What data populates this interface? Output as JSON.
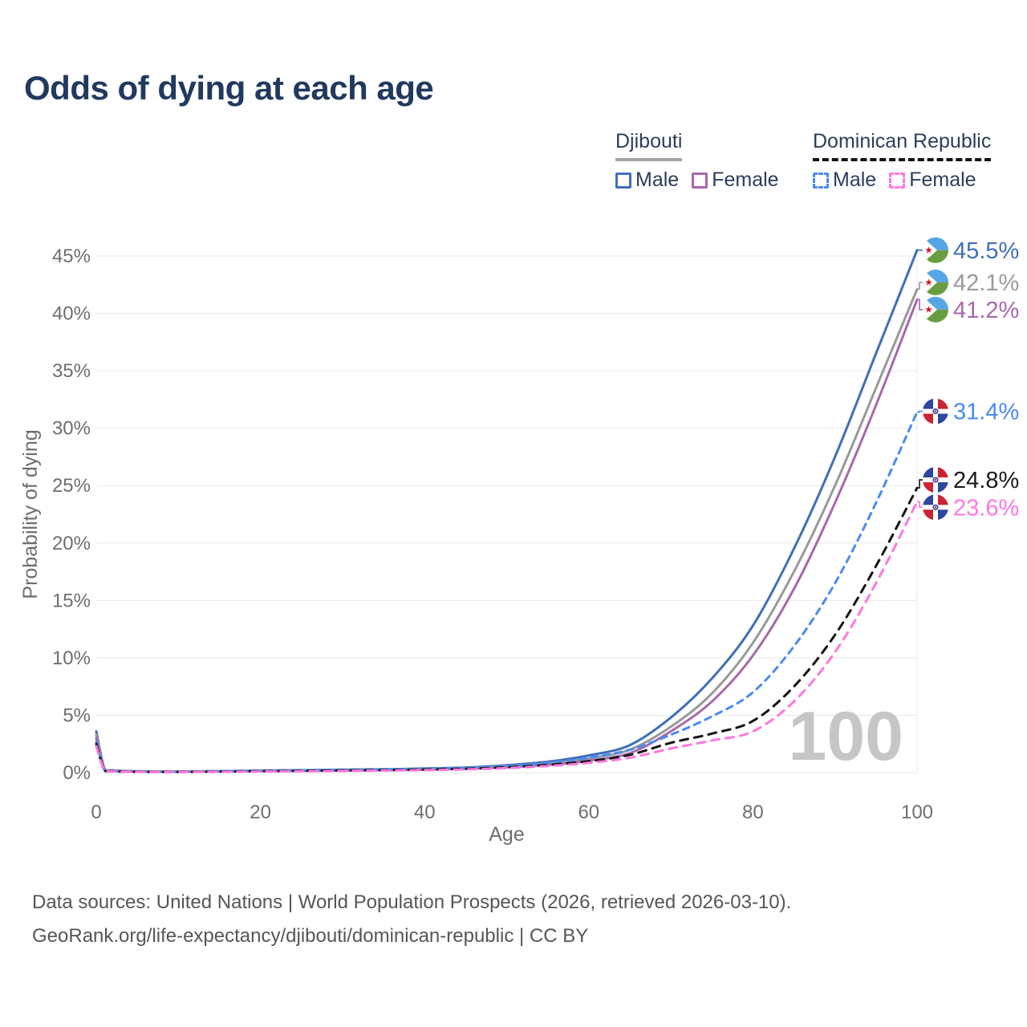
{
  "title": "Odds of dying at each age",
  "legend": {
    "groups": [
      {
        "country": "Djibouti",
        "line_style": "solid",
        "line_color": "#a6a6a6",
        "items": [
          {
            "label": "Male",
            "color": "#3f6fb9",
            "style": "solid"
          },
          {
            "label": "Female",
            "color": "#a868ab",
            "style": "solid"
          }
        ]
      },
      {
        "country": "Dominican Republic",
        "line_style": "dashed",
        "line_color": "#141414",
        "items": [
          {
            "label": "Male",
            "color": "#4b8bf0",
            "style": "dashed"
          },
          {
            "label": "Female",
            "color": "#ff77e0",
            "style": "dashed"
          }
        ]
      }
    ]
  },
  "chart_data": {
    "type": "line",
    "title": "Odds of dying at each age",
    "xlabel": "Age",
    "ylabel": "Probability of dying",
    "xlim": [
      0,
      100
    ],
    "ylim": [
      0,
      45
    ],
    "xticks": [
      0,
      20,
      40,
      60,
      80,
      100
    ],
    "ytick_step": 5,
    "ytick_suffix": "%",
    "grid": "horizontal",
    "watermark": "100",
    "x": [
      0,
      1,
      2,
      5,
      10,
      15,
      20,
      25,
      30,
      35,
      40,
      45,
      50,
      55,
      60,
      65,
      70,
      75,
      80,
      85,
      90,
      95,
      100
    ],
    "series": [
      {
        "name": "Djibouti Male",
        "country": "Djibouti",
        "sex": "Male",
        "flag": "djibouti",
        "color": "#3f6fb9",
        "dash": "",
        "width": 3,
        "end_label": "45.5%",
        "label_color": "#3f6fb9",
        "values": [
          3.6,
          0.35,
          0.2,
          0.12,
          0.1,
          0.13,
          0.18,
          0.22,
          0.26,
          0.3,
          0.36,
          0.45,
          0.65,
          0.95,
          1.5,
          2.4,
          4.8,
          8.2,
          12.8,
          19.5,
          27.5,
          36.5,
          45.5
        ]
      },
      {
        "name": "Djibouti Both sexes",
        "country": "Djibouti",
        "sex": "Both",
        "flag": "djibouti",
        "color": "#999999",
        "dash": "",
        "width": 3,
        "end_label": "42.1%",
        "label_color": "#9a9a9a",
        "values": [
          3.3,
          0.32,
          0.18,
          0.11,
          0.09,
          0.11,
          0.15,
          0.18,
          0.21,
          0.25,
          0.3,
          0.38,
          0.55,
          0.8,
          1.25,
          2.0,
          4.0,
          6.9,
          11.3,
          17.5,
          25.0,
          33.5,
          42.1
        ]
      },
      {
        "name": "Djibouti Female",
        "country": "Djibouti",
        "sex": "Female",
        "flag": "djibouti",
        "color": "#a868ab",
        "dash": "",
        "width": 3,
        "end_label": "41.2%",
        "label_color": "#a868ab",
        "values": [
          3.0,
          0.3,
          0.17,
          0.1,
          0.08,
          0.1,
          0.13,
          0.15,
          0.18,
          0.21,
          0.26,
          0.33,
          0.47,
          0.68,
          1.05,
          1.7,
          3.6,
          6.2,
          10.2,
          16.0,
          23.5,
          32.0,
          41.2
        ]
      },
      {
        "name": "Dominican Republic Male",
        "country": "Dominican Republic",
        "sex": "Male",
        "flag": "dominican-republic",
        "color": "#4b8bf0",
        "dash": "8 7",
        "width": 3,
        "end_label": "31.4%",
        "label_color": "#4b8bf0",
        "values": [
          2.7,
          0.2,
          0.12,
          0.08,
          0.07,
          0.1,
          0.16,
          0.2,
          0.24,
          0.28,
          0.33,
          0.42,
          0.58,
          0.85,
          1.3,
          2.0,
          3.3,
          4.9,
          7.0,
          11.0,
          16.5,
          23.5,
          31.4
        ]
      },
      {
        "name": "Dominican Republic Both sexes",
        "country": "Dominican Republic",
        "sex": "Both",
        "flag": "dominican-republic",
        "color": "#141414",
        "dash": "10 8",
        "width": 3,
        "end_label": "24.8%",
        "label_color": "#1a1a1a",
        "values": [
          2.5,
          0.18,
          0.11,
          0.07,
          0.06,
          0.09,
          0.13,
          0.16,
          0.19,
          0.22,
          0.27,
          0.34,
          0.47,
          0.68,
          1.0,
          1.55,
          2.6,
          3.4,
          4.5,
          7.5,
          12.0,
          18.0,
          24.8
        ]
      },
      {
        "name": "Dominican Republic Female",
        "country": "Dominican Republic",
        "sex": "Female",
        "flag": "dominican-republic",
        "color": "#ff77e0",
        "dash": "10 8",
        "width": 3,
        "end_label": "23.6%",
        "label_color": "#ff77e0",
        "values": [
          2.3,
          0.16,
          0.1,
          0.06,
          0.05,
          0.07,
          0.1,
          0.12,
          0.15,
          0.18,
          0.22,
          0.28,
          0.4,
          0.58,
          0.85,
          1.3,
          2.1,
          2.8,
          3.6,
          6.2,
          10.5,
          16.5,
          23.6
        ]
      }
    ]
  },
  "footer": {
    "line1": "Data sources: United Nations | World Population Prospects (2026, retrieved 2026-03-10).",
    "line2": "GeoRank.org/life-expectancy/djibouti/dominican-republic | CC BY"
  }
}
